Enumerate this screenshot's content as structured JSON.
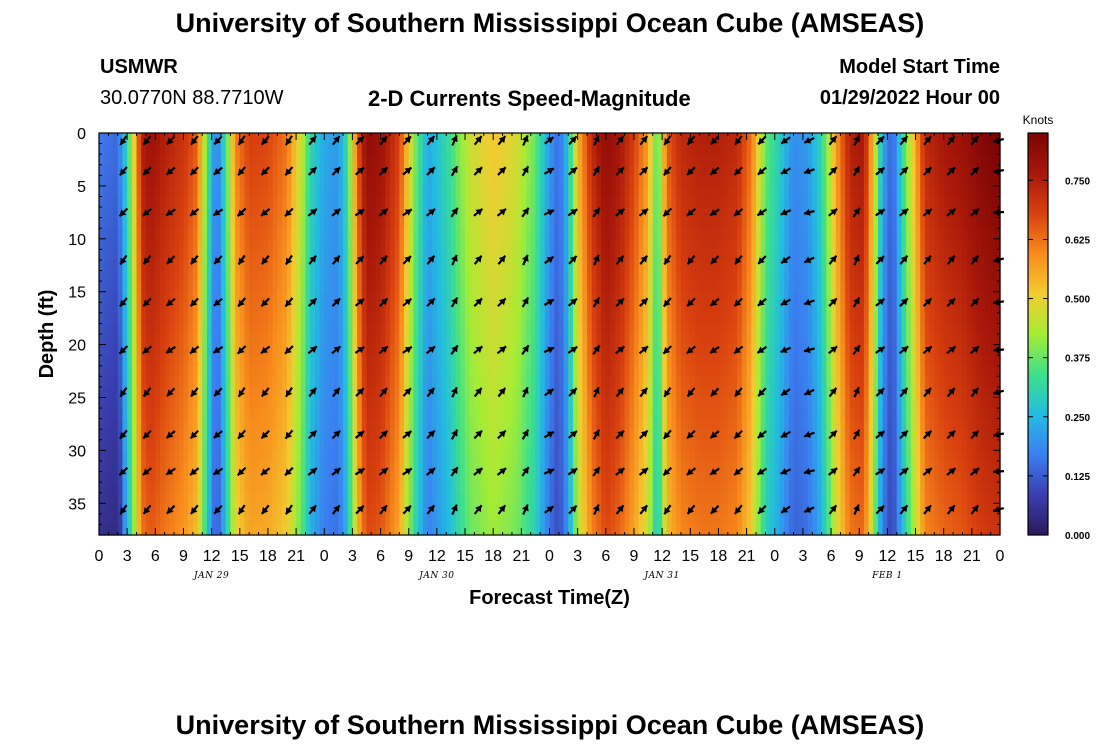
{
  "header": {
    "title": "University of Southern Mississippi Ocean Cube (AMSEAS)",
    "station": "USMWR",
    "location": "30.0770N  88.7710W",
    "subtitle": "2-D Currents Speed-Magnitude",
    "model_start_label": "Model Start Time",
    "model_start_value": "01/29/2022 Hour 00"
  },
  "footer": {
    "title": "University of Southern Mississippi Ocean Cube (AMSEAS)"
  },
  "chart_data": {
    "type": "heatmap",
    "title": "2-D Currents Speed-Magnitude",
    "xlabel": "Forecast Time(Z)",
    "ylabel": "Depth (ft)",
    "x_hours": [
      0,
      96
    ],
    "x_tick_step_hours": 3,
    "x_tick_labels": [
      "0",
      "3",
      "6",
      "9",
      "12",
      "15",
      "18",
      "21",
      "0",
      "3",
      "6",
      "9",
      "12",
      "15",
      "18",
      "21",
      "0",
      "3",
      "6",
      "9",
      "12",
      "15",
      "18",
      "21",
      "0",
      "3",
      "6",
      "9",
      "12",
      "15",
      "18",
      "21",
      "0"
    ],
    "day_labels": [
      {
        "text": "JAN 29",
        "hour": 12
      },
      {
        "text": "JAN 30",
        "hour": 36
      },
      {
        "text": "JAN 31",
        "hour": 60
      },
      {
        "text": "FEB 1",
        "hour": 84
      }
    ],
    "y_range": [
      0,
      38
    ],
    "y_ticks": [
      0,
      5,
      10,
      15,
      20,
      25,
      30,
      35
    ],
    "colorbar": {
      "unit": "Knots",
      "range": [
        0,
        0.85
      ],
      "ticks": [
        "0.000",
        "0.125",
        "0.250",
        "0.375",
        "0.500",
        "0.625",
        "0.750"
      ],
      "tick_values": [
        0,
        0.125,
        0.25,
        0.375,
        0.5,
        0.625,
        0.75
      ],
      "colormap": [
        "#2b1a5a",
        "#3a3fb0",
        "#3b7ff2",
        "#22bde0",
        "#3ee08a",
        "#a6ec34",
        "#f2cc31",
        "#f88c1c",
        "#d9400f",
        "#a8180a",
        "#7a0403"
      ]
    },
    "speed_profile_hours": [
      0,
      2,
      3,
      4,
      4.5,
      5.5,
      7,
      9,
      10.5,
      11.5,
      12.5,
      13.5,
      14.5,
      16,
      18,
      20,
      21.5,
      22.5,
      24,
      25.5,
      26.5,
      27.5,
      28.5,
      30,
      32,
      33.5,
      35,
      37,
      39.5,
      42,
      44.5,
      46.5,
      48,
      49,
      50,
      51,
      52.5,
      54,
      55.5,
      57,
      58.5,
      59.5,
      60.5,
      62,
      64,
      66,
      68,
      69.5,
      71,
      72.5,
      74,
      75.5,
      77,
      78.5,
      80,
      81.5,
      82.5,
      83.5,
      84.5,
      86,
      88,
      90,
      92,
      94,
      96
    ],
    "speed_profile_knots": [
      0.16,
      0.14,
      0.3,
      0.55,
      0.72,
      0.76,
      0.72,
      0.68,
      0.62,
      0.35,
      0.15,
      0.32,
      0.58,
      0.66,
      0.65,
      0.6,
      0.45,
      0.3,
      0.22,
      0.2,
      0.32,
      0.62,
      0.78,
      0.76,
      0.66,
      0.4,
      0.22,
      0.3,
      0.45,
      0.5,
      0.46,
      0.36,
      0.2,
      0.14,
      0.26,
      0.52,
      0.7,
      0.78,
      0.74,
      0.66,
      0.55,
      0.32,
      0.62,
      0.7,
      0.72,
      0.72,
      0.7,
      0.6,
      0.36,
      0.28,
      0.18,
      0.2,
      0.3,
      0.55,
      0.72,
      0.74,
      0.5,
      0.22,
      0.12,
      0.38,
      0.7,
      0.74,
      0.76,
      0.8,
      0.82
    ],
    "vector_direction_pattern_deg": [
      130,
      135,
      140,
      135,
      140,
      130,
      135,
      130,
      315,
      315,
      320,
      315,
      320,
      315,
      300,
      315,
      315,
      300,
      330,
      320,
      300,
      315,
      315,
      130,
      135,
      140,
      135,
      140,
      150,
      160,
      315,
      300,
      320,
      315,
      315,
      315,
      315,
      170
    ]
  }
}
